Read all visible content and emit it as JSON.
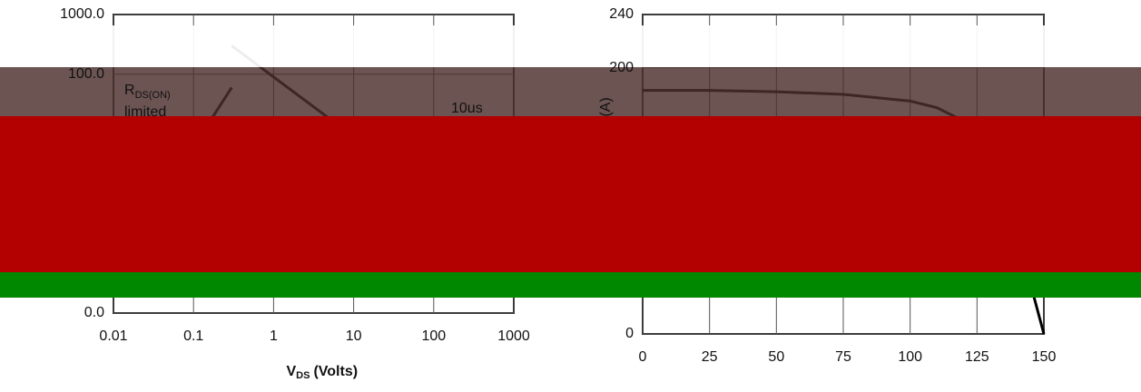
{
  "chart_data": [
    {
      "type": "line",
      "xscale": "log",
      "yscale": "log",
      "xlim": [
        0.01,
        1000
      ],
      "ylim": [
        0.01,
        1000
      ],
      "xticks": [
        0.01,
        0.1,
        1,
        10,
        100,
        1000
      ],
      "yticks": [
        {
          "value": 1000,
          "label": "1000.0"
        },
        {
          "value": 100,
          "label": "100.0"
        },
        {
          "value": 0.01,
          "label": "0.0"
        }
      ],
      "x_label": {
        "main": "V",
        "sub": "DS",
        "rest": "(Volts)"
      },
      "annotations": [
        {
          "main": "R",
          "sub": "DS(ON)"
        },
        "limited",
        "10us"
      ],
      "grid": true,
      "series": [
        {
          "color": "#000000",
          "x": [
            0.03,
            0.3
          ],
          "values": [
            0.5,
            60
          ]
        },
        {
          "color": "#000000",
          "x": [
            0.3,
            30
          ],
          "values": [
            300,
            3
          ]
        }
      ]
    },
    {
      "type": "line",
      "xscale": "linear",
      "yscale": "linear",
      "xlim": [
        0,
        150
      ],
      "ylim": [
        0,
        240
      ],
      "xticks": [
        0,
        25,
        50,
        75,
        100,
        125,
        150
      ],
      "yticks": [
        0,
        200,
        240
      ],
      "y_label": "(A)",
      "grid": true,
      "series": [
        {
          "color": "#000000",
          "x": [
            0,
            25,
            50,
            75,
            100,
            110,
            120,
            130,
            140,
            150
          ],
          "values": [
            183,
            183,
            182,
            180,
            175,
            170,
            160,
            130,
            75,
            0
          ]
        }
      ]
    }
  ]
}
